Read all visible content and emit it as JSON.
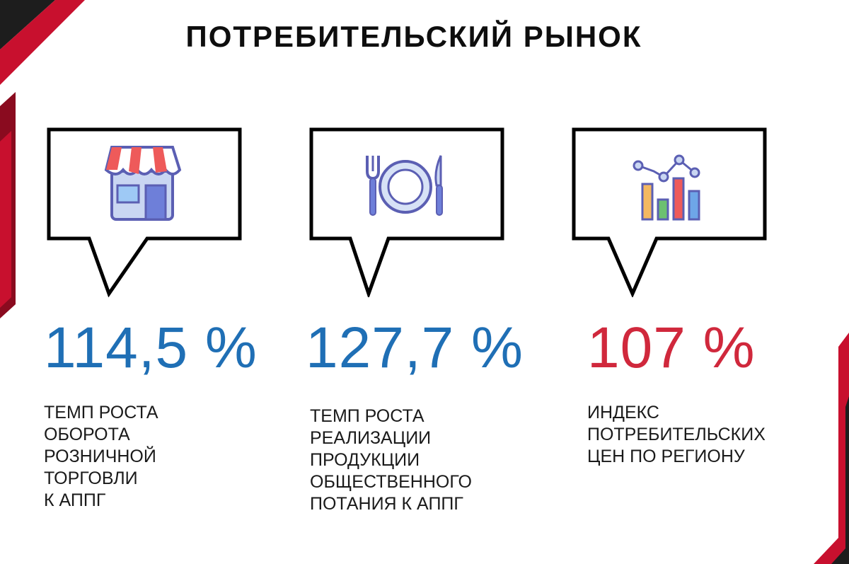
{
  "title": "ПОТРЕБИТЕЛЬСКИЙ РЫНОК",
  "colors": {
    "blue": "#1f6fb5",
    "red": "#d0283c",
    "frame_dark": "#1d1d1d",
    "frame_red": "#c8102e"
  },
  "cards": [
    {
      "icon": "shop-icon",
      "value": "114,5 %",
      "value_color": "#1f6fb5",
      "description": "ТЕМП РОСТА\nОБОРОТА\nРОЗНИЧНОЙ\nТОРГОВЛИ\nК АППГ"
    },
    {
      "icon": "plate-cutlery-icon",
      "value": "127,7 %",
      "value_color": "#1f6fb5",
      "description": "ТЕМП РОСТА\nРЕАЛИЗАЦИИ\nПРОДУКЦИИ\nОБЩЕСТВЕННОГО\nПОТАНИЯ К АППГ"
    },
    {
      "icon": "bar-chart-icon",
      "value": "107 %",
      "value_color": "#d0283c",
      "description": "ИНДЕКС\nПОТРЕБИТЕЛЬСКИХ\nЦЕН ПО РЕГИОНУ"
    }
  ]
}
